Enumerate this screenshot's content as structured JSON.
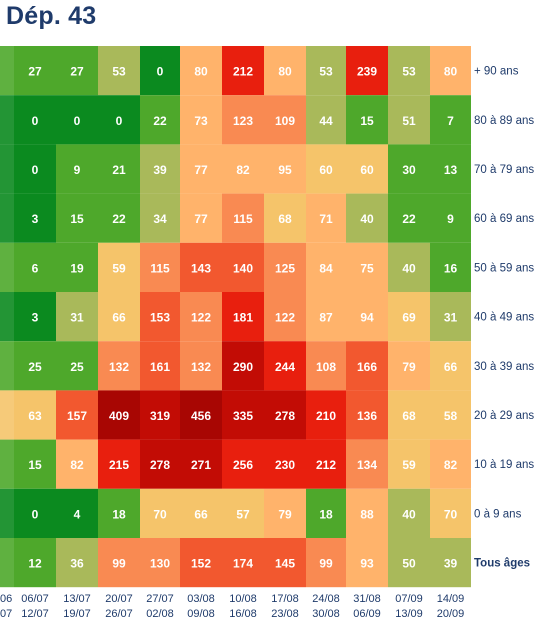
{
  "title": "Dép. 43",
  "chart_data": {
    "type": "heatmap",
    "title": "Dép. 43",
    "rows": [
      "+ 90 ans",
      "80 à 89 ans",
      "70 à 79 ans",
      "60 à 69 ans",
      "50 à 59 ans",
      "40 à 49 ans",
      "30 à 39 ans",
      "20 à 29 ans",
      "10 à 19 ans",
      "0 à 9 ans",
      "Tous âges"
    ],
    "columns": [
      {
        "line1": "06/07",
        "line2": "12/07"
      },
      {
        "line1": "13/07",
        "line2": "19/07"
      },
      {
        "line1": "20/07",
        "line2": "26/07"
      },
      {
        "line1": "27/07",
        "line2": "02/08"
      },
      {
        "line1": "03/08",
        "line2": "09/08"
      },
      {
        "line1": "10/08",
        "line2": "16/08"
      },
      {
        "line1": "17/08",
        "line2": "23/08"
      },
      {
        "line1": "24/08",
        "line2": "30/08"
      },
      {
        "line1": "31/08",
        "line2": "06/09"
      },
      {
        "line1": "07/09",
        "line2": "13/09"
      },
      {
        "line1": "14/09",
        "line2": "20/09"
      }
    ],
    "partial_first_column_labels": {
      "line1": "06",
      "line2": "07"
    },
    "values": [
      [
        27,
        27,
        53,
        0,
        80,
        212,
        80,
        53,
        239,
        53,
        80
      ],
      [
        0,
        0,
        0,
        22,
        73,
        123,
        109,
        44,
        15,
        51,
        7
      ],
      [
        0,
        9,
        21,
        39,
        77,
        82,
        95,
        60,
        60,
        30,
        13
      ],
      [
        3,
        15,
        22,
        34,
        77,
        115,
        68,
        71,
        40,
        22,
        9
      ],
      [
        6,
        19,
        59,
        115,
        143,
        140,
        125,
        84,
        75,
        40,
        16
      ],
      [
        3,
        31,
        66,
        153,
        122,
        181,
        122,
        87,
        94,
        69,
        31
      ],
      [
        25,
        25,
        132,
        161,
        132,
        290,
        244,
        108,
        166,
        79,
        66
      ],
      [
        63,
        157,
        409,
        319,
        456,
        335,
        278,
        210,
        136,
        68,
        58
      ],
      [
        15,
        82,
        215,
        278,
        271,
        256,
        230,
        212,
        134,
        59,
        82
      ],
      [
        0,
        4,
        18,
        70,
        66,
        57,
        79,
        18,
        88,
        40,
        70
      ],
      [
        12,
        36,
        99,
        130,
        152,
        174,
        145,
        99,
        93,
        50,
        39
      ]
    ],
    "colors": {
      "dark_green": "#0b8a1f",
      "green": "#4ea82b",
      "olive": "#a9b95a",
      "sand": "#f5c46a",
      "light_orange": "#ffb36b",
      "orange": "#f98a52",
      "red_orange": "#f2582f",
      "red": "#e81f0e",
      "dark_red": "#c20c05",
      "crimson": "#a80603"
    }
  }
}
